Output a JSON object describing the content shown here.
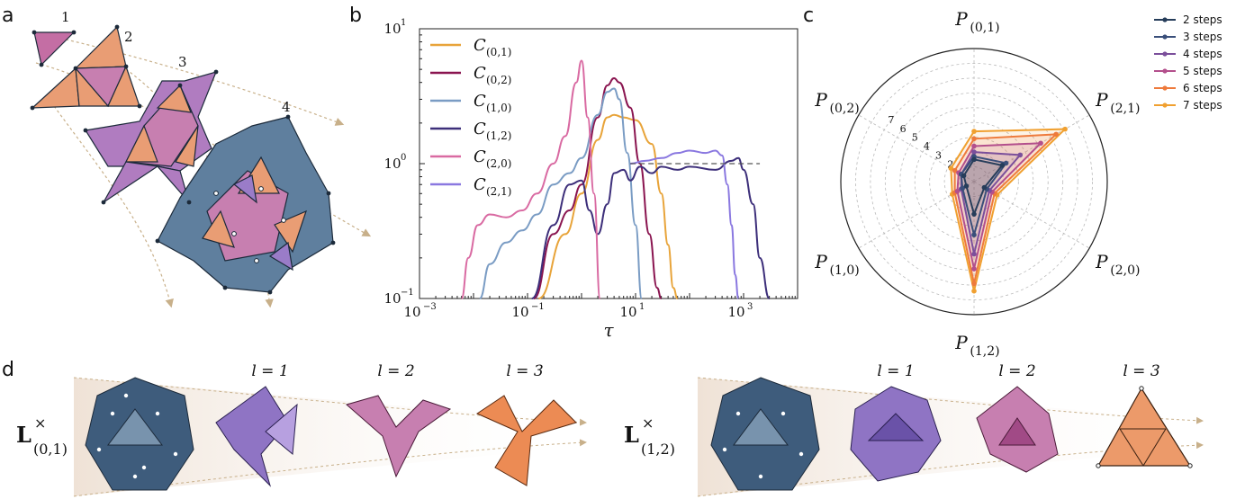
{
  "panels": {
    "a": "a",
    "b": "b",
    "c": "c",
    "d": "d"
  },
  "panel_a": {
    "step_labels": [
      "1",
      "2",
      "3",
      "4"
    ]
  },
  "chart_data": [
    {
      "type": "line",
      "xscale": "log",
      "yscale": "log",
      "xlabel": "τ",
      "ylabel": "",
      "xlim": [
        0.001,
        10000
      ],
      "ylim": [
        0.1,
        10
      ],
      "xticks": [
        "10",
        "10",
        "10",
        "10"
      ],
      "xtick_exps": [
        "−3",
        "−1",
        "1",
        "3"
      ],
      "yticks": [
        "10",
        "10",
        "10"
      ],
      "ytick_exps": [
        "−1",
        "0",
        "1"
      ],
      "legend_placement": "upper-left",
      "series": [
        {
          "name": "C",
          "sub": "(0,1)",
          "color": "#e8a43a",
          "x": [
            0.16,
            0.5,
            1,
            2,
            3,
            4,
            6,
            10,
            20,
            30,
            40,
            50,
            60
          ],
          "y": [
            0.1,
            0.3,
            0.6,
            1.5,
            2.2,
            2.3,
            2.2,
            2.1,
            1.4,
            0.6,
            0.25,
            0.12,
            0.1
          ]
        },
        {
          "name": "C",
          "sub": "(0,2)",
          "color": "#8a1550",
          "x": [
            0.13,
            0.3,
            0.6,
            1,
            2,
            3,
            4,
            5,
            8,
            12,
            18,
            25,
            30
          ],
          "y": [
            0.1,
            0.3,
            0.45,
            0.7,
            2.2,
            3.8,
            4.3,
            4.0,
            2.6,
            1.0,
            0.3,
            0.12,
            0.1
          ]
        },
        {
          "name": "C",
          "sub": "(1,0)",
          "color": "#7a9cc4",
          "x": [
            0.013,
            0.02,
            0.04,
            0.08,
            0.15,
            0.3,
            0.6,
            1,
            2,
            3,
            4,
            5,
            7,
            10,
            13
          ],
          "y": [
            0.1,
            0.18,
            0.26,
            0.32,
            0.42,
            0.7,
            0.85,
            1.1,
            2.3,
            3.4,
            3.6,
            3.0,
            1.2,
            0.35,
            0.1
          ]
        },
        {
          "name": "C",
          "sub": "(1,2)",
          "color": "#3d2f7a",
          "x": [
            0.12,
            0.3,
            0.6,
            1,
            1.4,
            2,
            3,
            4,
            6,
            8,
            12,
            20,
            30,
            60,
            100,
            300,
            600,
            800,
            1000,
            1500,
            2000,
            3000
          ],
          "y": [
            0.1,
            0.35,
            0.7,
            0.75,
            0.45,
            0.3,
            0.5,
            0.85,
            0.9,
            0.75,
            0.95,
            0.85,
            0.95,
            0.9,
            0.95,
            0.9,
            1.05,
            1.1,
            0.9,
            0.5,
            0.2,
            0.1
          ]
        },
        {
          "name": "C",
          "sub": "(2,0)",
          "color": "#d96aa2",
          "x": [
            0.006,
            0.008,
            0.012,
            0.02,
            0.04,
            0.08,
            0.15,
            0.3,
            0.5,
            0.8,
            1,
            1.3,
            1.7,
            2.2
          ],
          "y": [
            0.1,
            0.2,
            0.35,
            0.42,
            0.4,
            0.45,
            0.6,
            1.0,
            1.6,
            4.0,
            5.8,
            2.2,
            0.6,
            0.1
          ]
        },
        {
          "name": "C",
          "sub": "(2,1)",
          "color": "#8a78e0",
          "x": [
            8,
            15,
            30,
            60,
            100,
            200,
            300,
            400,
            500,
            600,
            700,
            800
          ],
          "y": [
            1.0,
            1.05,
            1.1,
            1.2,
            1.25,
            1.2,
            1.25,
            1.15,
            0.7,
            0.35,
            0.15,
            0.1
          ]
        }
      ],
      "reference_line": {
        "x": [
          8,
          2000
        ],
        "y": [
          1,
          1
        ],
        "style": "dashed"
      }
    },
    {
      "type": "radar",
      "axes": [
        {
          "label": "P",
          "sub": "(0,1)"
        },
        {
          "label": "P",
          "sub": "(2,1)"
        },
        {
          "label": "P",
          "sub": "(2,0)"
        },
        {
          "label": "P",
          "sub": "(1,2)"
        },
        {
          "label": "P",
          "sub": "(1,0)"
        },
        {
          "label": "P",
          "sub": "(0,2)"
        }
      ],
      "rmax": 9,
      "rticks": [
        "2",
        "3",
        "4",
        "5",
        "6",
        "7"
      ],
      "legend_placement": "right",
      "series": [
        {
          "name": "2 steps",
          "color": "#263d5a",
          "values": [
            1.5,
            2.2,
            0.8,
            2.2,
            0.6,
            0.8
          ]
        },
        {
          "name": "3 steps",
          "color": "#3a4f7a",
          "values": [
            1.7,
            2.5,
            1.0,
            3.6,
            0.9,
            1.0
          ]
        },
        {
          "name": "4 steps",
          "color": "#7b4f9b",
          "values": [
            2.0,
            3.6,
            1.2,
            4.9,
            1.0,
            1.0
          ]
        },
        {
          "name": "5 steps",
          "color": "#b34f8c",
          "values": [
            2.4,
            5.2,
            1.4,
            5.9,
            1.3,
            1.2
          ]
        },
        {
          "name": "6 steps",
          "color": "#ee7a3c",
          "values": [
            2.9,
            6.4,
            1.6,
            6.9,
            1.5,
            1.5
          ]
        },
        {
          "name": "7 steps",
          "color": "#f0a030",
          "values": [
            3.4,
            7.1,
            1.8,
            7.4,
            1.7,
            1.8
          ]
        }
      ]
    }
  ],
  "panel_d": {
    "left": {
      "operator": "L",
      "sup": "×",
      "sub": "(0,1)",
      "levels": [
        "l = 1",
        "l = 2",
        "l = 3"
      ]
    },
    "right": {
      "operator": "L",
      "sup": "×",
      "sub": "(1,2)",
      "levels": [
        "l = 1",
        "l = 2",
        "l = 3"
      ]
    }
  },
  "colors": {
    "blue": "#4a6a8c",
    "purple": "#9a7cc8",
    "pink": "#c77fb0",
    "orange": "#eb9a6c",
    "arrow": "#c8b08a"
  }
}
